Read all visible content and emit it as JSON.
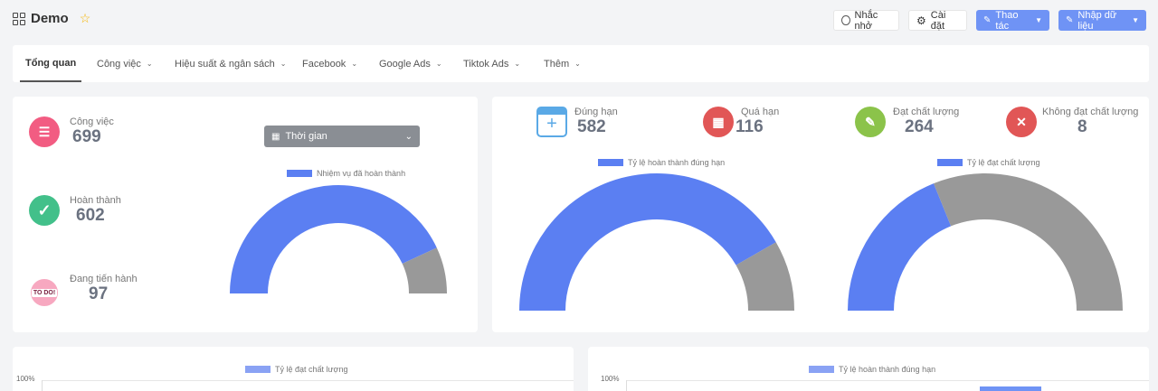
{
  "header": {
    "title": "Demo",
    "reminder_label": "Nhắc nhở",
    "settings_label": "Cài đặt",
    "actions_label": "Thao tác",
    "import_label": "Nhập dữ liệu"
  },
  "tabs": [
    {
      "label": "Tổng quan",
      "active": true
    },
    {
      "label": "Công việc"
    },
    {
      "label": "Hiệu suất & ngân sách"
    },
    {
      "label": "Facebook"
    },
    {
      "label": "Google Ads"
    },
    {
      "label": "Tiktok Ads"
    },
    {
      "label": "Thêm"
    }
  ],
  "left_card": {
    "stats": [
      {
        "label": "Công việc",
        "value": "699",
        "icon": "task-icon",
        "color": "#f25c82"
      },
      {
        "label": "Hoàn thành",
        "value": "602",
        "icon": "check-icon",
        "color": "#42c08a"
      },
      {
        "label": "Đang tiến hành",
        "value": "97",
        "icon": "todo-icon",
        "color": "#f7a8c0",
        "icon_text": "TO DO!"
      }
    ],
    "time_select": "Thời gian"
  },
  "right_card": {
    "stats": [
      {
        "label": "Đúng hạn",
        "value": "582",
        "icon": "calendar-icon"
      },
      {
        "label": "Quá hạn",
        "value": "116",
        "icon": "overdue-calendar-icon"
      },
      {
        "label": "Đạt chất lượng",
        "value": "264",
        "icon": "quality-icon"
      },
      {
        "label": "Không đạt chất lượng",
        "value": "8",
        "icon": "fail-quality-icon"
      }
    ]
  },
  "bottom": {
    "left_legend": "Tỷ lệ đạt chất lượng",
    "right_legend": "Tỷ lệ hoàn thành đúng hạn",
    "y_top_label": "100%"
  },
  "colors": {
    "primary": "#6f93f5",
    "series_blue": "#5b7ff2",
    "series_gray": "#999999",
    "overdue": "#e15656",
    "quality": "#8bc34a"
  },
  "chart_data": [
    {
      "type": "pie",
      "style": "half-doughnut",
      "legend": [
        "Nhiệm vụ đã hoàn thành"
      ],
      "categories": [
        "Nhiệm vụ đã hoàn thành",
        ""
      ],
      "values": [
        602,
        97
      ]
    },
    {
      "type": "pie",
      "style": "half-doughnut",
      "legend": [
        "Tỷ lệ hoàn thành đúng hạn"
      ],
      "categories": [
        "Tỷ lệ hoàn thành đúng hạn",
        ""
      ],
      "values": [
        582,
        116
      ]
    },
    {
      "type": "pie",
      "style": "half-doughnut",
      "legend": [
        "Tỷ lệ đạt chất lượng"
      ],
      "categories": [
        "Tỷ lệ đạt chất lượng",
        ""
      ],
      "values": [
        264,
        435
      ]
    }
  ]
}
